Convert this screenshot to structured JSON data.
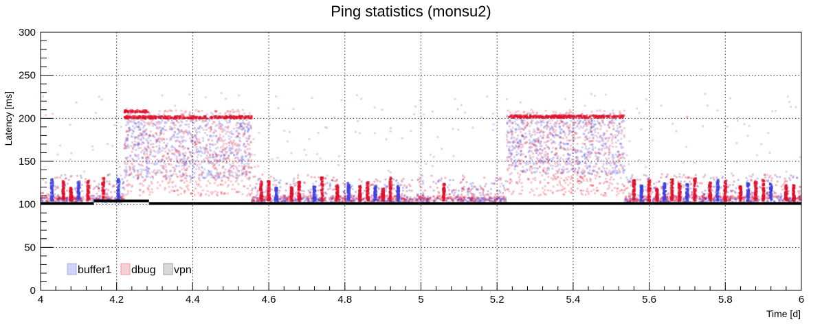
{
  "chart_data": {
    "type": "scatter",
    "title": "Ping statistics (monsu2)",
    "xlabel": "Time [d]",
    "ylabel": "Latency [ms]",
    "xlim": [
      4,
      6
    ],
    "ylim": [
      0,
      300
    ],
    "x_ticks": [
      4,
      4.2,
      4.4,
      4.6,
      4.8,
      5,
      5.2,
      5.4,
      5.6,
      5.8,
      6
    ],
    "x_tick_labels": [
      "4",
      "4.2",
      "4.4",
      "4.6",
      "4.8",
      "5",
      "5.2",
      "5.4",
      "5.6",
      "5.8",
      "6"
    ],
    "y_ticks": [
      0,
      50,
      100,
      150,
      200,
      250,
      300
    ],
    "y_tick_labels": [
      "0",
      "50",
      "100",
      "150",
      "200",
      "250",
      "300"
    ],
    "grid": true,
    "legend": {
      "position": "bottom-left"
    },
    "series": [
      {
        "name": "buffer1",
        "color": "#4040e0",
        "segments": [
          {
            "x_start": 4.0,
            "x_end": 4.22,
            "baseline": 102,
            "spread": [
              102,
              135
            ]
          },
          {
            "x_start": 4.22,
            "x_end": 4.555,
            "baseline": 140,
            "spread": [
              130,
              205
            ]
          },
          {
            "x_start": 4.555,
            "x_end": 5.225,
            "baseline": 102,
            "spread": [
              102,
              130
            ]
          },
          {
            "x_start": 5.225,
            "x_end": 5.535,
            "baseline": 145,
            "spread": [
              135,
              205
            ]
          },
          {
            "x_start": 5.535,
            "x_end": 6.0,
            "baseline": 102,
            "spread": [
              102,
              135
            ]
          }
        ]
      },
      {
        "name": "dbug",
        "color": "#e0102a",
        "bands": [
          {
            "x_start": 4.22,
            "x_end": 4.555,
            "y": 201
          },
          {
            "x_start": 4.22,
            "x_end": 4.285,
            "y": 208
          },
          {
            "x_start": 5.225,
            "x_end": 5.535,
            "y": 202
          }
        ],
        "segments": [
          {
            "x_start": 4.0,
            "x_end": 4.22,
            "baseline": 104,
            "spread": [
              102,
              135
            ]
          },
          {
            "x_start": 4.22,
            "x_end": 4.555,
            "baseline": 150,
            "spread": [
              110,
              210
            ]
          },
          {
            "x_start": 4.555,
            "x_end": 5.225,
            "baseline": 104,
            "spread": [
              102,
              135
            ]
          },
          {
            "x_start": 5.225,
            "x_end": 5.535,
            "baseline": 150,
            "spread": [
              110,
              210
            ]
          },
          {
            "x_start": 5.535,
            "x_end": 6.0,
            "baseline": 104,
            "spread": [
              102,
              135
            ]
          }
        ]
      },
      {
        "name": "vpn",
        "color": "#000000",
        "baseline_segments": [
          {
            "x_start": 4.0,
            "x_end": 4.14,
            "y": 101
          },
          {
            "x_start": 4.14,
            "x_end": 4.285,
            "y": 104
          },
          {
            "x_start": 4.285,
            "x_end": 6.0,
            "y": 101
          }
        ]
      }
    ]
  }
}
